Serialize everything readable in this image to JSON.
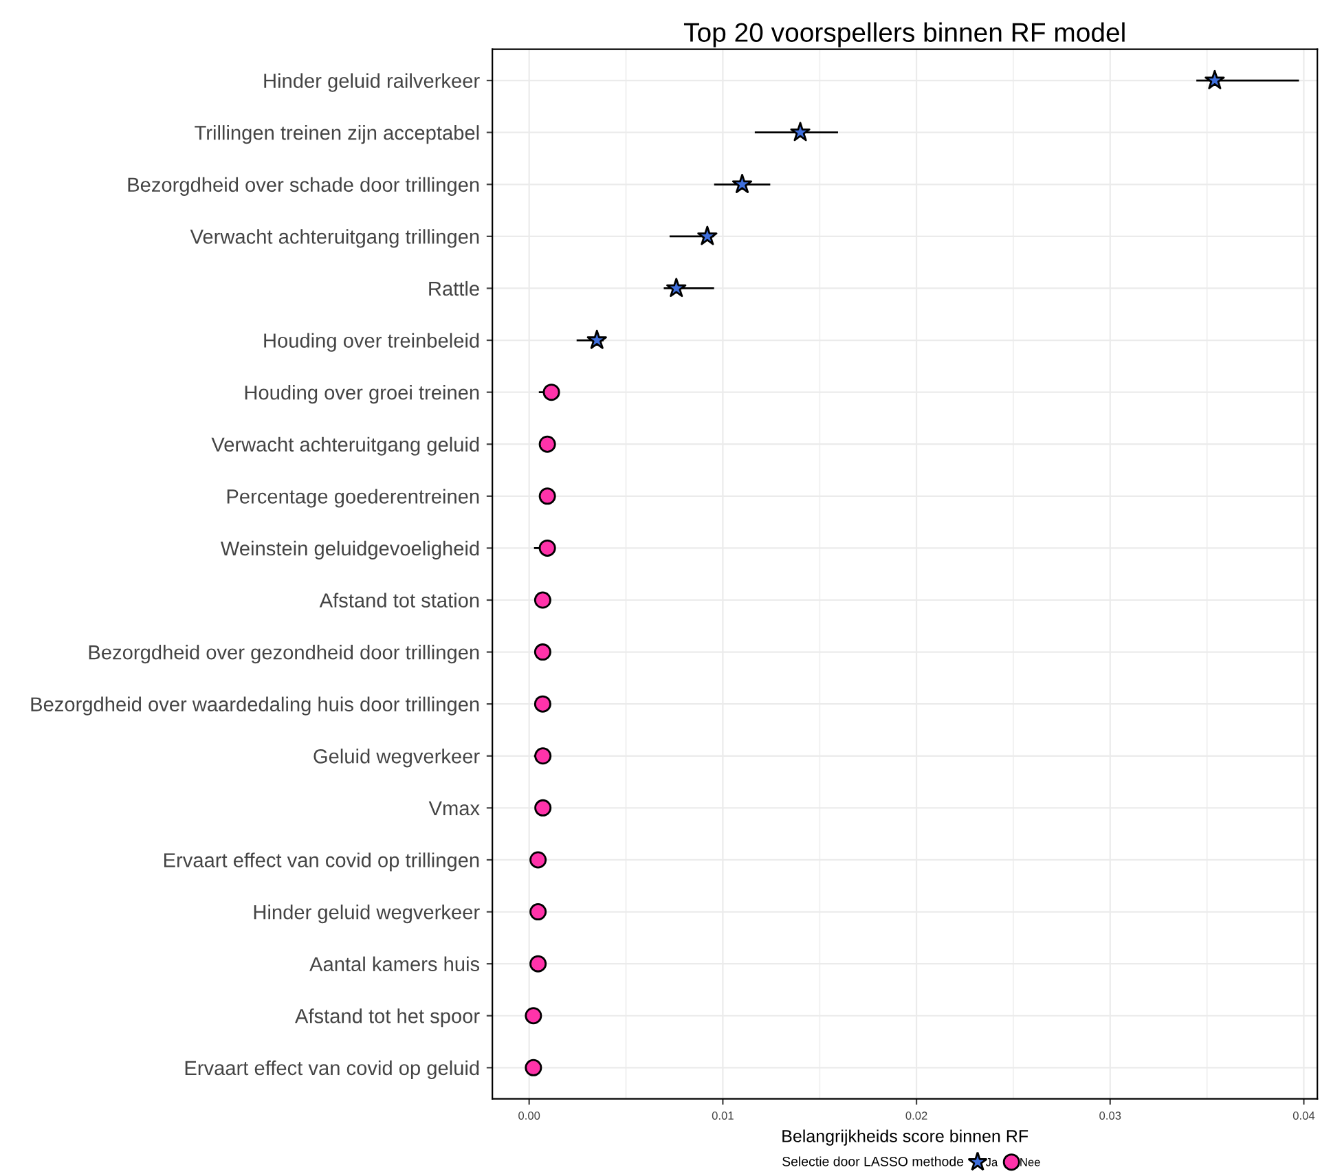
{
  "chart_data": {
    "type": "scatter",
    "title": "Top 20 voorspellers binnen RF model",
    "xlabel": "Belangrijkheids score binnen RF",
    "legend_title": "Selectie door LASSO methode",
    "orientation": "horizontal",
    "categories": [
      "Hinder geluid railverkeer",
      "Trillingen treinen zijn acceptabel",
      "Bezorgdheid over schade door trillingen",
      "Verwacht achteruitgang trillingen",
      "Rattle",
      "Houding over treinbeleid",
      "Houding over groei treinen",
      "Verwacht achteruitgang geluid",
      "Percentage goederentreinen",
      "Weinstein geluidgevoeligheid",
      "Afstand tot station",
      "Bezorgdheid over gezondheid door trillingen",
      "Bezorgdheid over waardedaling huis door trillingen",
      "Geluid wegverkeer",
      "Vmax",
      "Ervaart effect van covid op trillingen",
      "Hinder geluid wegverkeer",
      "Aantal kamers huis",
      "Afstand tot het spoor",
      "Ervaart effect van covid op geluid"
    ],
    "series": [
      {
        "name": "Ja",
        "color": "#3f6fdc",
        "marker": "star",
        "values": [
          0.0354,
          0.014,
          0.011,
          0.0092,
          0.0076,
          0.0035,
          null,
          null,
          null,
          null,
          null,
          null,
          null,
          null,
          null,
          null,
          null,
          null,
          null,
          null
        ],
        "errors": [
          [
            0.0345,
            0.0397
          ],
          [
            0.0117,
            0.0159
          ],
          [
            0.0096,
            0.0124
          ],
          [
            0.0073,
            0.0095
          ],
          [
            0.007,
            0.0095
          ],
          [
            0.0025,
            0.0038
          ],
          null,
          null,
          null,
          null,
          null,
          null,
          null,
          null,
          null,
          null,
          null,
          null,
          null,
          null
        ]
      },
      {
        "name": "Nee",
        "color": "#ff33aa",
        "marker": "circle",
        "values": [
          null,
          null,
          null,
          null,
          null,
          null,
          0.00115,
          0.00094,
          0.00094,
          0.00094,
          0.0007,
          0.0007,
          0.0007,
          0.00071,
          0.00071,
          0.00046,
          0.00046,
          0.00046,
          0.00022,
          0.00022
        ],
        "errors": [
          null,
          null,
          null,
          null,
          null,
          null,
          [
            0.00055,
            0.00115
          ],
          null,
          null,
          [
            0.0003,
            0.00127
          ],
          null,
          null,
          null,
          [
            0.0003,
            0.00071
          ],
          null,
          null,
          null,
          null,
          null,
          null
        ]
      }
    ],
    "xlim": [
      -0.0019,
      0.0407
    ],
    "xticks": [
      {
        "value": 0,
        "label": "0.00"
      },
      {
        "value": 0.01,
        "label": "0.01"
      },
      {
        "value": 0.02,
        "label": "0.02"
      },
      {
        "value": 0.03,
        "label": "0.03"
      },
      {
        "value": 0.04,
        "label": "0.04"
      }
    ],
    "grid": true,
    "legend": "bottom"
  }
}
